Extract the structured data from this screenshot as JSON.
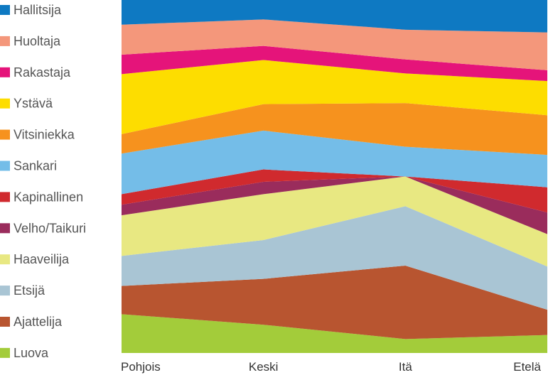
{
  "chart_data": {
    "type": "area",
    "stacked": true,
    "normalized_percent": true,
    "title": "",
    "xlabel": "",
    "ylabel": "",
    "ylim": [
      0,
      100
    ],
    "grid": false,
    "legend_position": "left",
    "categories": [
      "Pohjois",
      "Keski",
      "Itä",
      "Etelä"
    ],
    "series": [
      {
        "name": "Luova",
        "color": "#a3cc3a",
        "values": [
          11,
          8,
          4,
          5
        ]
      },
      {
        "name": "Ajattelija",
        "color": "#b85530",
        "values": [
          8,
          13,
          21,
          7
        ]
      },
      {
        "name": "Etsijä",
        "color": "#a9c5d4",
        "values": [
          8.5,
          11,
          17,
          12
        ]
      },
      {
        "name": "Haaveilija",
        "color": "#e8e882",
        "values": [
          11.5,
          13,
          8.5,
          9
        ]
      },
      {
        "name": "Velho/Taikuri",
        "color": "#9a2c5c",
        "values": [
          3,
          3.5,
          0,
          6
        ]
      },
      {
        "name": "Kapinallinen",
        "color": "#d02a2e",
        "values": [
          3,
          3.5,
          0,
          7
        ]
      },
      {
        "name": "Sankari",
        "color": "#74bde8",
        "values": [
          11.5,
          11,
          8.5,
          9
        ]
      },
      {
        "name": "Vitsiniekka",
        "color": "#f6921e",
        "values": [
          5.5,
          7.5,
          12.5,
          11
        ]
      },
      {
        "name": "Ystävä",
        "color": "#fddd00",
        "values": [
          17,
          12.5,
          8.5,
          9.5
        ]
      },
      {
        "name": "Rakastaja",
        "color": "#e5147a",
        "values": [
          5.5,
          4,
          4,
          3
        ]
      },
      {
        "name": "Huoltaja",
        "color": "#f4977b",
        "values": [
          8.5,
          7.5,
          8.5,
          10.5
        ]
      },
      {
        "name": "Hallitsija",
        "color": "#0e79c2",
        "values": [
          7,
          5.5,
          8.5,
          9
        ]
      }
    ]
  }
}
